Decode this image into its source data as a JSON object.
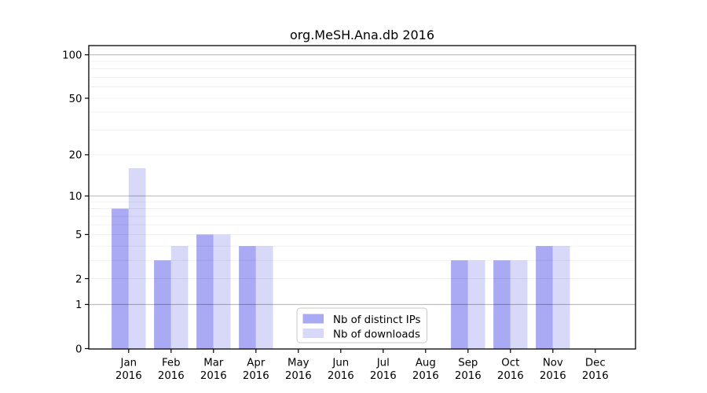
{
  "chart_data": {
    "type": "bar",
    "title": "org.MeSH.Ana.db 2016",
    "x_year": "2016",
    "categories": [
      "Jan",
      "Feb",
      "Mar",
      "Apr",
      "May",
      "Jun",
      "Jul",
      "Aug",
      "Sep",
      "Oct",
      "Nov",
      "Dec"
    ],
    "series": [
      {
        "name": "Nb of distinct IPs",
        "color": "#a9a9f4",
        "values": [
          8,
          3,
          5,
          4,
          0,
          0,
          0,
          0,
          3,
          3,
          4,
          0
        ]
      },
      {
        "name": "Nb of downloads",
        "color": "#d8d8f8",
        "values": [
          16,
          4,
          5,
          4,
          0,
          0,
          0,
          0,
          3,
          3,
          4,
          0
        ]
      }
    ],
    "y_scale": "log1p",
    "y_ticks": [
      0,
      1,
      2,
      5,
      10,
      20,
      50,
      100
    ],
    "major_gridlines": [
      1,
      10,
      100
    ],
    "minor_gridlines": [
      2,
      3,
      4,
      5,
      6,
      7,
      8,
      9,
      20,
      30,
      40,
      50,
      60,
      70,
      80,
      90,
      110
    ],
    "ylim": [
      0,
      117
    ],
    "grid": true,
    "legend_position": "lower center"
  }
}
